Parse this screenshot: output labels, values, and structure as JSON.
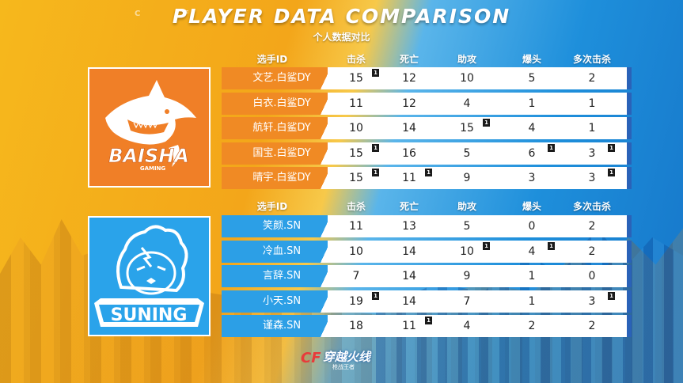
{
  "title": "PLAYER DATA COMPARISON",
  "subtitle": "个人数据对比",
  "deco_letters": [
    "C",
    "F"
  ],
  "headers": [
    "选手ID",
    "击杀",
    "死亡",
    "助攻",
    "爆头",
    "多次击杀"
  ],
  "teams": [
    {
      "logo_text": "BAISHA",
      "logo_sub": "GAMING",
      "color": "#f07f27",
      "players": [
        {
          "name": "文艺.白鲨DY",
          "kills": "15",
          "deaths": "12",
          "assists": "10",
          "headshots": "5",
          "multikills": "2",
          "badges": {
            "kills": "1"
          }
        },
        {
          "name": "白衣.白鲨DY",
          "kills": "11",
          "deaths": "12",
          "assists": "4",
          "headshots": "1",
          "multikills": "1",
          "badges": {}
        },
        {
          "name": "航轩.白鲨DY",
          "kills": "10",
          "deaths": "14",
          "assists": "15",
          "headshots": "4",
          "multikills": "1",
          "badges": {
            "assists": "1"
          }
        },
        {
          "name": "国宝.白鲨DY",
          "kills": "15",
          "deaths": "16",
          "assists": "5",
          "headshots": "6",
          "multikills": "3",
          "badges": {
            "kills": "1",
            "headshots": "1",
            "multikills": "1"
          }
        },
        {
          "name": "晴宇.白鲨DY",
          "kills": "15",
          "deaths": "11",
          "assists": "9",
          "headshots": "3",
          "multikills": "3",
          "badges": {
            "kills": "1",
            "deaths": "1",
            "multikills": "1"
          }
        }
      ]
    },
    {
      "logo_text": "SUNING",
      "color": "#2aa3ea",
      "players": [
        {
          "name": "笑颜.SN",
          "kills": "11",
          "deaths": "13",
          "assists": "5",
          "headshots": "0",
          "multikills": "2",
          "badges": {}
        },
        {
          "name": "冷血.SN",
          "kills": "10",
          "deaths": "14",
          "assists": "10",
          "headshots": "4",
          "multikills": "2",
          "badges": {
            "assists": "1",
            "headshots": "1"
          }
        },
        {
          "name": "言辞.SN",
          "kills": "7",
          "deaths": "14",
          "assists": "9",
          "headshots": "1",
          "multikills": "0",
          "badges": {}
        },
        {
          "name": "小天.SN",
          "kills": "19",
          "deaths": "14",
          "assists": "7",
          "headshots": "1",
          "multikills": "3",
          "badges": {
            "kills": "1",
            "multikills": "1"
          }
        },
        {
          "name": "谨森.SN",
          "kills": "18",
          "deaths": "11",
          "assists": "4",
          "headshots": "2",
          "multikills": "2",
          "badges": {
            "deaths": "1"
          }
        }
      ]
    }
  ],
  "footer": {
    "logo_mark": "CF",
    "logo_text": "穿越火线",
    "logo_sub": "枪战王者"
  }
}
